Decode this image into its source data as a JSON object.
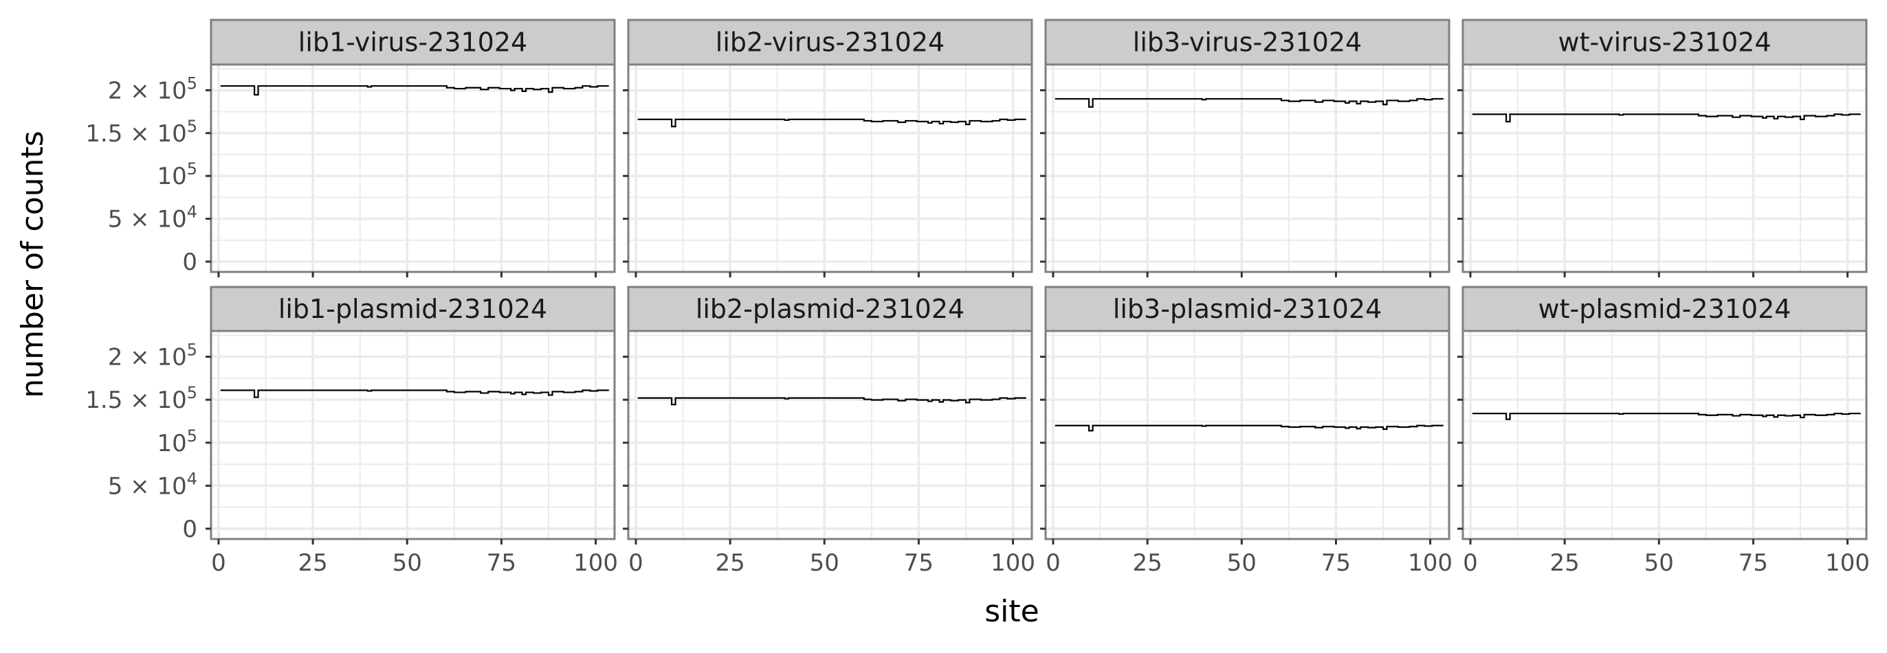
{
  "chart_data": {
    "type": "line",
    "facet_layout": {
      "rows": 2,
      "cols": 4
    },
    "xlabel": "site",
    "ylabel": "number of counts",
    "xlim": [
      -2,
      105
    ],
    "ylim": [
      -12000,
      230000
    ],
    "x_ticks": [
      0,
      25,
      50,
      75,
      100
    ],
    "y_ticks": [
      {
        "value": 0,
        "label": "0",
        "base": "0",
        "exp": ""
      },
      {
        "value": 50000,
        "label": "5 × 10^4",
        "base": "5 × 10",
        "exp": "4"
      },
      {
        "value": 100000,
        "label": "10^5",
        "base": "10",
        "exp": "5"
      },
      {
        "value": 150000,
        "label": "1.5 × 10^5",
        "base": "1.5 × 10",
        "exp": "5"
      },
      {
        "value": 200000,
        "label": "2 × 10^5",
        "base": "2 × 10",
        "exp": "5"
      }
    ],
    "grid": true,
    "theme": "bw",
    "line_color": "#000000",
    "strip_fill": "#cccccc",
    "panel_border": "#7f7f7f",
    "grid_color": "#ebebeb",
    "profile": {
      "x_start": 1,
      "x_end": 103,
      "dips": [
        {
          "from": 10,
          "to": 11,
          "frac": 0.95
        },
        {
          "from": 40,
          "to": 41,
          "frac": 0.995
        },
        {
          "from": 61,
          "to": 63,
          "frac": 0.99
        },
        {
          "from": 63,
          "to": 66,
          "frac": 0.985
        },
        {
          "from": 66,
          "to": 70,
          "frac": 0.99
        },
        {
          "from": 70,
          "to": 72,
          "frac": 0.98
        },
        {
          "from": 72,
          "to": 75,
          "frac": 0.99
        },
        {
          "from": 75,
          "to": 78,
          "frac": 0.985
        },
        {
          "from": 78,
          "to": 79,
          "frac": 0.975
        },
        {
          "from": 79,
          "to": 81,
          "frac": 0.985
        },
        {
          "from": 81,
          "to": 82,
          "frac": 0.97
        },
        {
          "from": 82,
          "to": 84,
          "frac": 0.985
        },
        {
          "from": 84,
          "to": 86,
          "frac": 0.98
        },
        {
          "from": 86,
          "to": 88,
          "frac": 0.985
        },
        {
          "from": 88,
          "to": 89,
          "frac": 0.965
        },
        {
          "from": 89,
          "to": 92,
          "frac": 0.99
        },
        {
          "from": 92,
          "to": 95,
          "frac": 0.985
        },
        {
          "from": 95,
          "to": 97,
          "frac": 0.99
        },
        {
          "from": 99,
          "to": 101,
          "frac": 0.995
        }
      ]
    },
    "panels": [
      {
        "name": "lib1-virus-231024",
        "level": 205000
      },
      {
        "name": "lib2-virus-231024",
        "level": 166000
      },
      {
        "name": "lib3-virus-231024",
        "level": 190000
      },
      {
        "name": "wt-virus-231024",
        "level": 172000
      },
      {
        "name": "lib1-plasmid-231024",
        "level": 161000
      },
      {
        "name": "lib2-plasmid-231024",
        "level": 152000
      },
      {
        "name": "lib3-plasmid-231024",
        "level": 120000
      },
      {
        "name": "wt-plasmid-231024",
        "level": 134000
      }
    ]
  }
}
